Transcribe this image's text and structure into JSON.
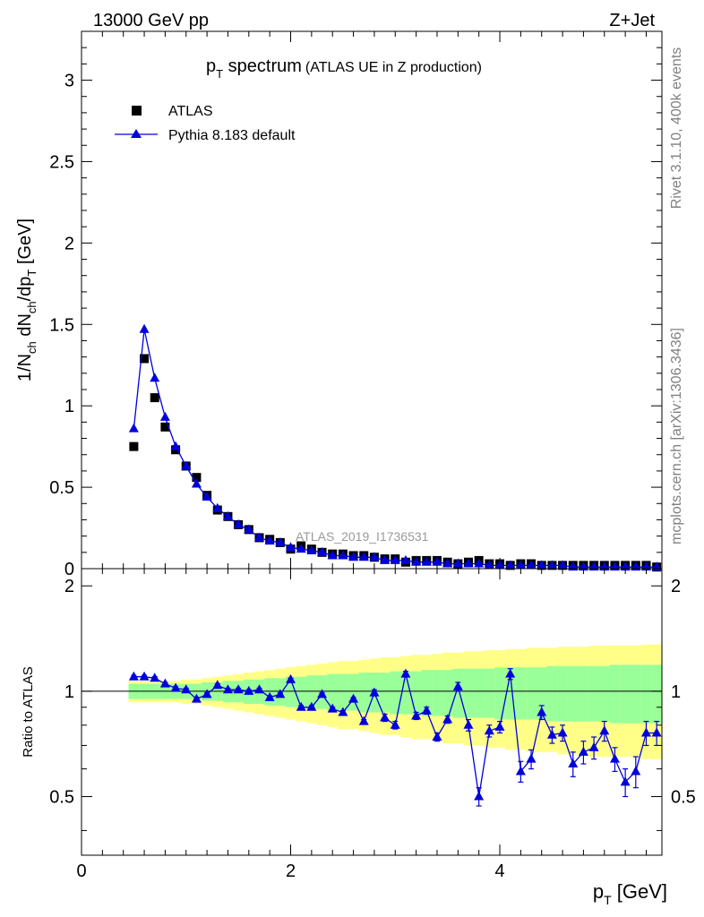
{
  "header": {
    "energy_label": "13000 GeV pp",
    "process_label": "Z+Jet"
  },
  "side_labels": {
    "rivet": "Rivet 3.1.10,  400k events",
    "mcplots": "mcplots.cern.ch [arXiv:1306.3436]"
  },
  "colors": {
    "data": "#000000",
    "mc": "#0000dd",
    "band_inner": "#99ff99",
    "band_outer": "#ffff88"
  },
  "chart_data": [
    {
      "type": "scatter",
      "title_main": "p",
      "title_sub": "T",
      "title_rest": " spectrum",
      "title_note": "(ATLAS UE in Z production)",
      "watermark": "ATLAS_2019_I1736531",
      "ylabel": "1/N_ch dN_ch/dp_T [GeV]",
      "xlim": [
        0,
        5.55
      ],
      "ylim": [
        0,
        3.3
      ],
      "yticks": [
        0,
        0.5,
        1,
        1.5,
        2,
        2.5,
        3
      ],
      "ytick_labels": [
        "0",
        "0.5",
        "1",
        "1.5",
        "2",
        "2.5",
        "3"
      ],
      "legend": {
        "position": "top-left",
        "entries": [
          "ATLAS",
          "Pythia 8.183 default"
        ]
      },
      "x": [
        0.5,
        0.6,
        0.7,
        0.8,
        0.9,
        1.0,
        1.1,
        1.2,
        1.3,
        1.4,
        1.5,
        1.6,
        1.7,
        1.8,
        1.9,
        2.0,
        2.1,
        2.2,
        2.3,
        2.4,
        2.5,
        2.6,
        2.7,
        2.8,
        2.9,
        3.0,
        3.1,
        3.2,
        3.3,
        3.4,
        3.5,
        3.6,
        3.7,
        3.8,
        3.9,
        4.0,
        4.1,
        4.2,
        4.3,
        4.4,
        4.5,
        4.6,
        4.7,
        4.8,
        4.9,
        5.0,
        5.1,
        5.2,
        5.3,
        5.4,
        5.5
      ],
      "series": [
        {
          "name": "ATLAS",
          "marker": "square",
          "values": [
            0.75,
            1.29,
            1.05,
            0.87,
            0.73,
            0.63,
            0.56,
            0.45,
            0.36,
            0.32,
            0.27,
            0.24,
            0.19,
            0.18,
            0.16,
            0.12,
            0.14,
            0.12,
            0.1,
            0.09,
            0.09,
            0.08,
            0.08,
            0.07,
            0.06,
            0.06,
            0.04,
            0.05,
            0.05,
            0.05,
            0.04,
            0.03,
            0.04,
            0.05,
            0.03,
            0.03,
            0.02,
            0.03,
            0.03,
            0.02,
            0.02,
            0.02,
            0.02,
            0.02,
            0.02,
            0.02,
            0.02,
            0.02,
            0.02,
            0.02,
            0.01
          ]
        },
        {
          "name": "Pythia 8.183 default",
          "marker": "triangle",
          "values": [
            0.86,
            1.47,
            1.17,
            0.93,
            0.75,
            0.63,
            0.52,
            0.44,
            0.37,
            0.32,
            0.27,
            0.24,
            0.19,
            0.17,
            0.16,
            0.13,
            0.12,
            0.11,
            0.1,
            0.08,
            0.08,
            0.07,
            0.07,
            0.07,
            0.05,
            0.05,
            0.05,
            0.04,
            0.04,
            0.04,
            0.03,
            0.03,
            0.03,
            0.03,
            0.02,
            0.02,
            0.02,
            0.02,
            0.02,
            0.02,
            0.02,
            0.02,
            0.01,
            0.01,
            0.01,
            0.01,
            0.01,
            0.01,
            0.01,
            0.01,
            0.01
          ]
        }
      ]
    },
    {
      "type": "line",
      "xlabel_main": "p",
      "xlabel_sub": "T",
      "xlabel_rest": " [GeV]",
      "ylabel": "Ratio to ATLAS",
      "xlim": [
        0,
        5.55
      ],
      "ylim": [
        0.34,
        2.24
      ],
      "xticks": [
        0,
        2,
        4
      ],
      "xtick_labels": [
        "0",
        "2",
        "4"
      ],
      "yticks": [
        0.5,
        1,
        2
      ],
      "ytick_labels": [
        "0.5",
        "1",
        "2"
      ],
      "reference_line": 1,
      "x": [
        0.5,
        0.6,
        0.7,
        0.8,
        0.9,
        1.0,
        1.1,
        1.2,
        1.3,
        1.4,
        1.5,
        1.6,
        1.7,
        1.8,
        1.9,
        2.0,
        2.1,
        2.2,
        2.3,
        2.4,
        2.5,
        2.6,
        2.7,
        2.8,
        2.9,
        3.0,
        3.1,
        3.2,
        3.3,
        3.4,
        3.5,
        3.6,
        3.7,
        3.8,
        3.9,
        4.0,
        4.1,
        4.2,
        4.3,
        4.4,
        4.5,
        4.6,
        4.7,
        4.8,
        4.9,
        5.0,
        5.1,
        5.2,
        5.3,
        5.4,
        5.5
      ],
      "series": [
        {
          "name": "Pythia 8.183 default / ATLAS",
          "values": [
            1.1,
            1.1,
            1.09,
            1.05,
            1.02,
            1.01,
            0.95,
            0.98,
            1.04,
            1.01,
            1.01,
            1.0,
            1.01,
            0.96,
            0.98,
            1.08,
            0.9,
            0.9,
            0.98,
            0.89,
            0.87,
            0.95,
            0.82,
            0.99,
            0.84,
            0.8,
            1.12,
            0.85,
            0.88,
            0.74,
            0.83,
            1.03,
            0.8,
            0.5,
            0.77,
            0.79,
            1.12,
            0.59,
            0.64,
            0.87,
            0.75,
            0.76,
            0.62,
            0.67,
            0.69,
            0.77,
            0.64,
            0.55,
            0.59,
            0.76,
            0.76
          ],
          "errors": [
            0.01,
            0.01,
            0.01,
            0.01,
            0.01,
            0.01,
            0.01,
            0.01,
            0.01,
            0.01,
            0.01,
            0.01,
            0.01,
            0.01,
            0.01,
            0.01,
            0.01,
            0.01,
            0.01,
            0.01,
            0.01,
            0.01,
            0.01,
            0.02,
            0.02,
            0.02,
            0.02,
            0.02,
            0.02,
            0.02,
            0.02,
            0.03,
            0.03,
            0.03,
            0.03,
            0.03,
            0.04,
            0.04,
            0.04,
            0.04,
            0.04,
            0.04,
            0.05,
            0.05,
            0.05,
            0.05,
            0.05,
            0.05,
            0.06,
            0.06,
            0.06
          ]
        }
      ],
      "band_inner": [
        0.05,
        0.05,
        0.05,
        0.05,
        0.05,
        0.05,
        0.05,
        0.06,
        0.06,
        0.07,
        0.07,
        0.08,
        0.08,
        0.09,
        0.09,
        0.1,
        0.1,
        0.11,
        0.11,
        0.12,
        0.12,
        0.12,
        0.13,
        0.13,
        0.13,
        0.14,
        0.14,
        0.14,
        0.15,
        0.15,
        0.15,
        0.16,
        0.16,
        0.16,
        0.16,
        0.17,
        0.17,
        0.17,
        0.17,
        0.17,
        0.18,
        0.18,
        0.18,
        0.18,
        0.18,
        0.18,
        0.19,
        0.19,
        0.19,
        0.19,
        0.19
      ],
      "band_outer": [
        0.07,
        0.07,
        0.07,
        0.07,
        0.07,
        0.08,
        0.08,
        0.09,
        0.1,
        0.11,
        0.12,
        0.13,
        0.14,
        0.15,
        0.16,
        0.17,
        0.18,
        0.19,
        0.2,
        0.21,
        0.22,
        0.22,
        0.23,
        0.24,
        0.25,
        0.25,
        0.26,
        0.27,
        0.27,
        0.28,
        0.29,
        0.29,
        0.3,
        0.3,
        0.31,
        0.31,
        0.32,
        0.32,
        0.33,
        0.33,
        0.33,
        0.34,
        0.34,
        0.34,
        0.35,
        0.35,
        0.35,
        0.35,
        0.35,
        0.36,
        0.36
      ]
    }
  ]
}
